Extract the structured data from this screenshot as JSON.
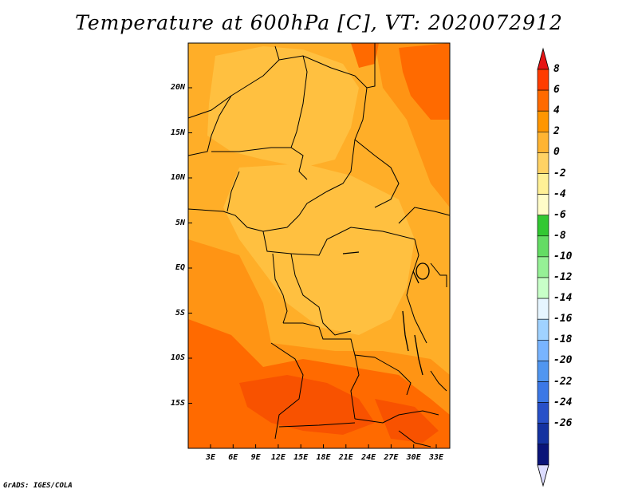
{
  "title": "Temperature at 600hPa [C], VT: 2020072912",
  "lat_labels": [
    "20N",
    "15N",
    "10N",
    "5N",
    "EQ",
    "5S",
    "10S",
    "15S"
  ],
  "lon_labels": [
    "3E",
    "6E",
    "9E",
    "12E",
    "15E",
    "18E",
    "21E",
    "24E",
    "27E",
    "30E",
    "33E"
  ],
  "colorbar": {
    "labels": [
      "8",
      "6",
      "4",
      "2",
      "0",
      "-2",
      "-4",
      "-6",
      "-8",
      "-10",
      "-12",
      "-14",
      "-16",
      "-18",
      "-20",
      "-22",
      "-24",
      "-26"
    ],
    "colors": [
      "#ff3c00",
      "#ff6a00",
      "#ff9600",
      "#ffb432",
      "#ffd264",
      "#fff096",
      "#fffcc8",
      "#32c832",
      "#64dc64",
      "#96f096",
      "#c8ffc8",
      "#e6f5ff",
      "#a0d2ff",
      "#78b4ff",
      "#5096f0",
      "#3c78e6",
      "#2850c8",
      "#1432a0",
      "#0a1478"
    ],
    "top_triangle_color": "#e61414",
    "bottom_triangle_color": "#dcdcff"
  },
  "field_colors": {
    "light": "#ffc040",
    "medium": "#ffae28",
    "warm": "#ff9414",
    "hot": "#ff6a00",
    "hottest": "#f85200"
  },
  "footer": "GrADS: IGES/COLA"
}
